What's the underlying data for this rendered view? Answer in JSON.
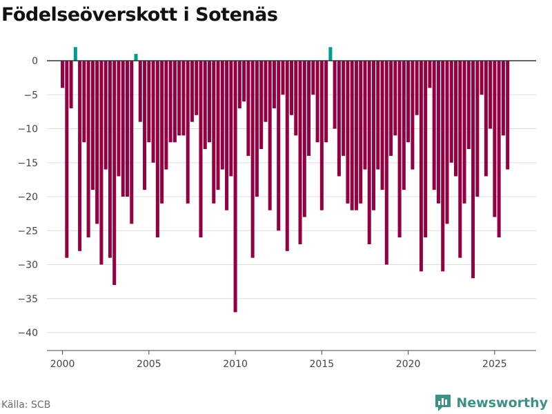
{
  "title": "Födelseöverskott i Sotenäs",
  "source": "Källa: SCB",
  "brand": "Newsworthy",
  "colors": {
    "negative": "#930041",
    "positive": "#009c93",
    "grid": "#dddddd",
    "zero": "#333333"
  },
  "chart_data": {
    "type": "bar",
    "title": "Födelseöverskott i Sotenäs",
    "xlabel": "",
    "ylabel": "",
    "frequency": "quarterly",
    "start": 2000,
    "values": [
      -4,
      -29,
      -7,
      2,
      -28,
      -12,
      -26,
      -19,
      -24,
      -30,
      -16,
      -29,
      -33,
      -17,
      -20,
      -20,
      -24,
      1,
      -9,
      -19,
      -12,
      -15,
      -26,
      -21,
      -16,
      -12,
      -12,
      -11,
      -11,
      -21,
      -9,
      -8,
      -26,
      -13,
      -12,
      -21,
      -19,
      -16,
      -22,
      -17,
      -37,
      -7,
      -6,
      -14,
      -29,
      -20,
      -13,
      -9,
      -22,
      -7,
      -25,
      -5,
      -28,
      -8,
      -11,
      -27,
      -23,
      -14,
      -5,
      -12,
      -22,
      -12,
      2,
      -10,
      -17,
      -14,
      -21,
      -22,
      -22,
      -21,
      -16,
      -27,
      -22,
      -16,
      -19,
      -30,
      -14,
      -11,
      -26,
      -19,
      -12,
      -16,
      -8,
      -31,
      -26,
      -4,
      -19,
      -21,
      -31,
      -24,
      -15,
      -17,
      -29,
      -21,
      -13,
      -32,
      -20,
      -5,
      -17,
      -10,
      -23,
      -26,
      -11,
      -16
    ],
    "ylim": [
      -40,
      2
    ],
    "xlim": [
      1999.1,
      2027.4
    ],
    "yticks": [
      0,
      -5,
      -10,
      -15,
      -20,
      -25,
      -30,
      -35,
      -40
    ],
    "xticks": [
      2000,
      2005,
      2010,
      2015,
      2020,
      2025
    ]
  }
}
